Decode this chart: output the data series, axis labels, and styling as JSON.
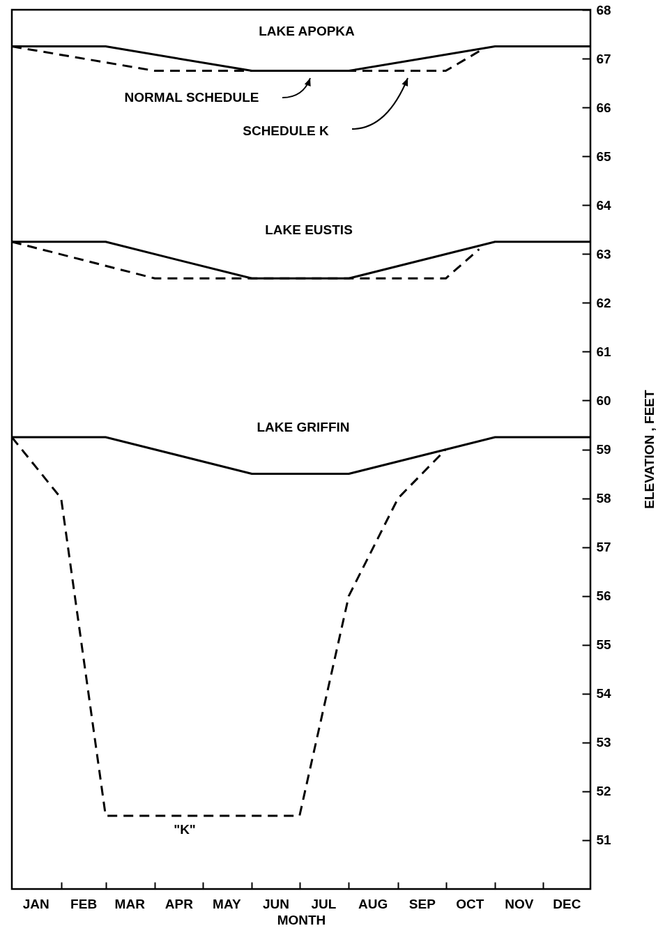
{
  "chart_data": {
    "type": "line",
    "xlabel": "MONTH",
    "ylabel": "ELEVATION , FEET",
    "xlim": [
      "--01-01",
      "--12-31"
    ],
    "xticks": [
      {
        "value": "--01-16",
        "label": "JAN"
      },
      {
        "value": "--02-01",
        "label": null
      },
      {
        "value": "--02-15",
        "label": "FEB"
      },
      {
        "value": "--03-01",
        "label": null
      },
      {
        "value": "--03-16",
        "label": "MAR"
      },
      {
        "value": "--04-01",
        "label": null
      },
      {
        "value": "--04-16",
        "label": "APR"
      },
      {
        "value": "--05-01",
        "label": null
      },
      {
        "value": "--05-16",
        "label": "MAY"
      },
      {
        "value": "--06-01",
        "label": null
      },
      {
        "value": "--06-16",
        "label": "JUN"
      },
      {
        "value": "--07-01",
        "label": null
      },
      {
        "value": "--07-16",
        "label": "JUL"
      },
      {
        "value": "--08-01",
        "label": null
      },
      {
        "value": "--08-16",
        "label": "AUG"
      },
      {
        "value": "--09-01",
        "label": null
      },
      {
        "value": "--09-16",
        "label": "SEP"
      },
      {
        "value": "--10-01",
        "label": null
      },
      {
        "value": "--10-16",
        "label": "OCT"
      },
      {
        "value": "--11-01",
        "label": null
      },
      {
        "value": "--11-16",
        "label": "NOV"
      },
      {
        "value": "--12-01",
        "label": null
      },
      {
        "value": "--12-16",
        "label": "DEC"
      }
    ],
    "ylim": [
      50,
      68
    ],
    "yticks": [
      51,
      52,
      53,
      54,
      55,
      56,
      57,
      58,
      59,
      60,
      61,
      62,
      63,
      64,
      65,
      66,
      67,
      68
    ],
    "grid": false,
    "series": [
      {
        "color": "#000000",
        "line_style": "solid",
        "x": [
          "--01-01",
          "--03-01",
          "--06-01",
          "--08-01",
          "--11-01",
          "--12-31"
        ],
        "values": [
          67.25,
          67.25,
          66.75,
          66.75,
          67.25,
          67.25
        ]
      },
      {
        "color": "#000000",
        "line_style": "dashed",
        "x": [
          "--01-01",
          "--04-01",
          "--10-01",
          "--10-22"
        ],
        "values": [
          67.25,
          66.75,
          66.75,
          67.15
        ]
      },
      {
        "color": "#000000",
        "line_style": "solid",
        "x": [
          "--01-01",
          "--03-01",
          "--06-01",
          "--08-01",
          "--11-01",
          "--12-31"
        ],
        "values": [
          63.25,
          63.25,
          62.5,
          62.5,
          63.25,
          63.25
        ]
      },
      {
        "color": "#000000",
        "line_style": "dashed",
        "x": [
          "--01-01",
          "--04-01",
          "--10-01",
          "--10-22"
        ],
        "values": [
          63.25,
          62.5,
          62.5,
          63.1
        ]
      },
      {
        "color": "#000000",
        "line_style": "solid",
        "x": [
          "--01-01",
          "--03-01",
          "--06-01",
          "--08-01",
          "--11-01",
          "--12-31"
        ],
        "values": [
          59.25,
          59.25,
          58.5,
          58.5,
          59.25,
          59.25
        ]
      },
      {
        "color": "#000000",
        "line_style": "dashed",
        "x": [
          "--01-01",
          "--02-01",
          "--03-01",
          "--07-01",
          "--08-01",
          "--09-01",
          "--10-01"
        ],
        "values": [
          59.25,
          58,
          51.5,
          51.5,
          56,
          58,
          59
        ]
      }
    ],
    "annotations": [
      "LAKE APOPKA",
      "NORMAL SCHEDULE",
      "SCHEDULE K",
      "LAKE EUSTIS",
      "LAKE GRIFFIN",
      "\"K\""
    ]
  }
}
